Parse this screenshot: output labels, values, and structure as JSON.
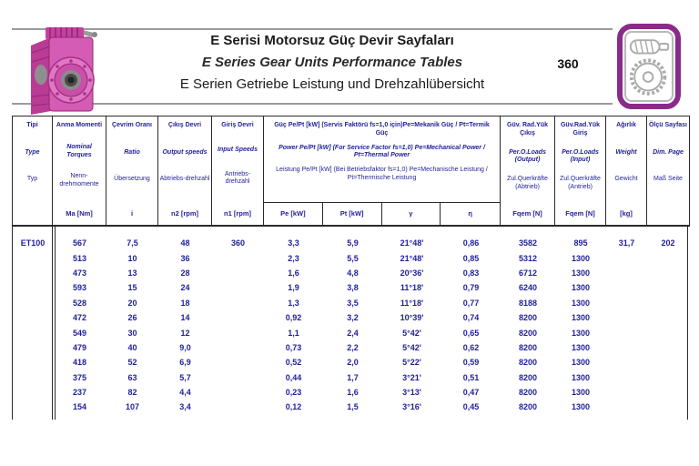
{
  "header": {
    "title_tr": "E Serisi Motorsuz Güç Devir Sayfaları",
    "title_en": "E Series Gear Units Performance Tables",
    "title_de": "E Serien Getriebe Leistung und Drehzahlübersicht",
    "page_number": "360",
    "left_image": "pink-worm-gearbox-photo",
    "corner_icon": "worm-gear-icon"
  },
  "colors": {
    "accent_purple": "#8a2b8a",
    "gearbox_pink": "#d55cb4",
    "table_text_navy": "#1f1f99",
    "rule_gray": "#9b9b9b"
  },
  "table": {
    "left_columns": [
      {
        "tr": "Tipi",
        "en": "Type",
        "de": "Typ",
        "unit": ""
      },
      {
        "tr": "Anma Momenti",
        "en": "Nominal Torques",
        "de": "Nenn-drehmomente",
        "unit": "Ma [Nm]"
      },
      {
        "tr": "Çevrim Oranı",
        "en": "Ratio",
        "de": "Übersetzung",
        "unit": "i"
      },
      {
        "tr": "Çıkış Devri",
        "en": "Output speeds",
        "de": "Abtriebs-drehzahl",
        "unit": "n2 [rpm]"
      },
      {
        "tr": "Giriş Devri",
        "en": "Input Speeds",
        "de": "Antriebs-drehzahl",
        "unit": "n1 [rpm]"
      }
    ],
    "power_group": {
      "tr": "Güç Pe/Pt [kW] (Servis Faktörü fs=1,0 için)Pe=Mekanik Güç / Pt=Termik Güç",
      "en": "Power Pe/Pt [kW] (For Service Factor fs=1,0) Pe=Mechanical Power / Pt=Thermal Power",
      "de": "Leistung Pe/Pt [kW] (Bei Betriebsfaktor fs=1,0) Pe=Mechanische Leistung / Pt=Thermische Leistung",
      "subcolumns": [
        "Pe [kW]",
        "Pt [kW]",
        "γ",
        "η"
      ]
    },
    "right_columns": [
      {
        "tr": "Güv. Rad.Yük Çıkış",
        "en": "Per.O.Loads (Output)",
        "de": "Zul.Querkräfte (Abtrieb)",
        "unit": "Fqem [N]"
      },
      {
        "tr": "Güv.Rad.Yük Giriş",
        "en": "Per.O.Loads (Input)",
        "de": "Zul.Querkräfte (Antrieb)",
        "unit": "Fqem [N]"
      },
      {
        "tr": "Ağırlık",
        "en": "Weight",
        "de": "Gewicht",
        "unit": "[kg]"
      },
      {
        "tr": "Ölçü Sayfası",
        "en": "Dim. Page",
        "de": "Maß Seite",
        "unit": ""
      }
    ],
    "rows": [
      [
        "ET100",
        "567",
        "7,5",
        "48",
        "360",
        "3,3",
        "5,9",
        "21°48'",
        "0,86",
        "3582",
        "895",
        "31,7",
        "202"
      ],
      [
        "",
        "513",
        "10",
        "36",
        "",
        "2,3",
        "5,5",
        "21°48'",
        "0,85",
        "5312",
        "1300",
        "",
        ""
      ],
      [
        "",
        "473",
        "13",
        "28",
        "",
        "1,6",
        "4,8",
        "20°36'",
        "0,83",
        "6712",
        "1300",
        "",
        ""
      ],
      [
        "",
        "593",
        "15",
        "24",
        "",
        "1,9",
        "3,8",
        "11°18'",
        "0,79",
        "6240",
        "1300",
        "",
        ""
      ],
      [
        "",
        "528",
        "20",
        "18",
        "",
        "1,3",
        "3,5",
        "11°18'",
        "0,77",
        "8188",
        "1300",
        "",
        ""
      ],
      [
        "",
        "472",
        "26",
        "14",
        "",
        "0,92",
        "3,2",
        "10°39'",
        "0,74",
        "8200",
        "1300",
        "",
        ""
      ],
      [
        "",
        "549",
        "30",
        "12",
        "",
        "1,1",
        "2,4",
        "5°42'",
        "0,65",
        "8200",
        "1300",
        "",
        ""
      ],
      [
        "",
        "479",
        "40",
        "9,0",
        "",
        "0,73",
        "2,2",
        "5°42'",
        "0,62",
        "8200",
        "1300",
        "",
        ""
      ],
      [
        "",
        "418",
        "52",
        "6,9",
        "",
        "0,52",
        "2,0",
        "5°22'",
        "0,59",
        "8200",
        "1300",
        "",
        ""
      ],
      [
        "",
        "375",
        "63",
        "5,7",
        "",
        "0,44",
        "1,7",
        "3°21'",
        "0,51",
        "8200",
        "1300",
        "",
        ""
      ],
      [
        "",
        "237",
        "82",
        "4,4",
        "",
        "0,23",
        "1,6",
        "3°13'",
        "0,47",
        "8200",
        "1300",
        "",
        ""
      ],
      [
        "",
        "154",
        "107",
        "3,4",
        "",
        "0,12",
        "1,5",
        "3°16'",
        "0,45",
        "8200",
        "1300",
        "",
        ""
      ]
    ]
  }
}
